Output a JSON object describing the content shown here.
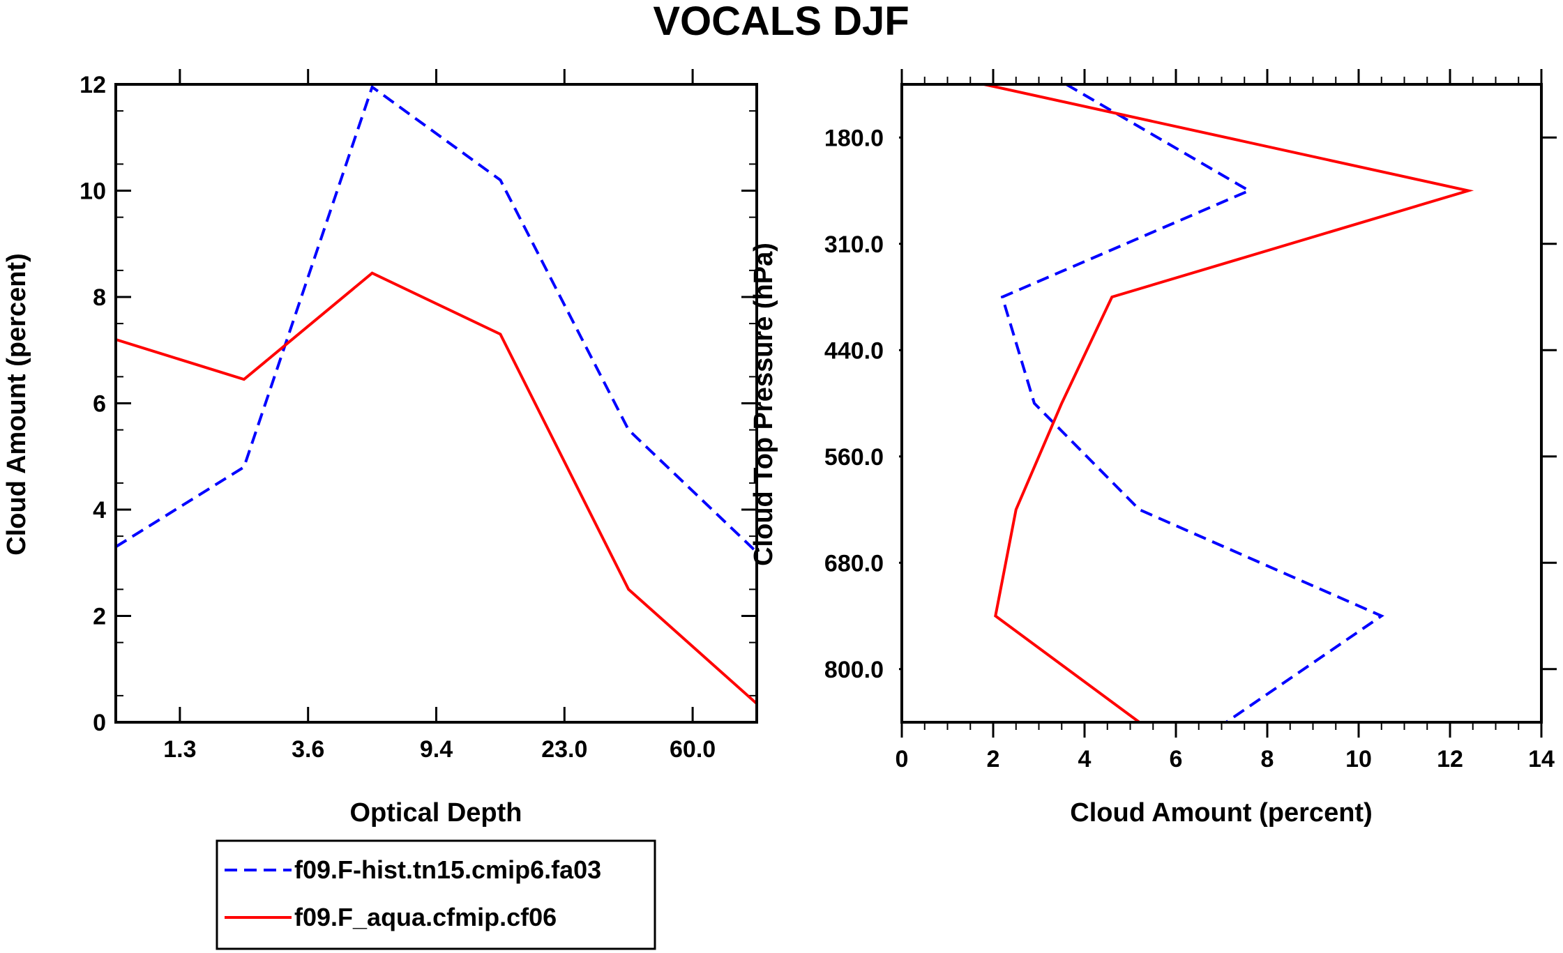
{
  "chart_data": [
    {
      "type": "line",
      "panel": "left",
      "title": "VOCALS DJF",
      "xlabel": "Optical Depth",
      "ylabel": "Cloud Amount (percent)",
      "x_scale": "log (optical depth bins)",
      "x": [
        0.3,
        2.45,
        6.5,
        16.2,
        41.5,
        100
      ],
      "xticks": [
        "1.3",
        "3.6",
        "9.4",
        "23.0",
        "60.0"
      ],
      "yticks": [
        "0",
        "2",
        "4",
        "6",
        "8",
        "10",
        "12"
      ],
      "ylim": [
        0,
        12
      ],
      "series": [
        {
          "name": "f09.F-hist.tn15.cmip6.fa03",
          "style": "dashed",
          "color": "#0000ff",
          "values": [
            3.3,
            4.8,
            11.95,
            10.2,
            5.5,
            3.2
          ]
        },
        {
          "name": "f09.F_aqua.cfmip.cf06",
          "style": "solid",
          "color": "#ff0000",
          "values": [
            7.2,
            6.45,
            8.45,
            7.3,
            2.5,
            0.35
          ]
        }
      ]
    },
    {
      "type": "line",
      "panel": "right",
      "xlabel": "Cloud Amount (percent)",
      "ylabel": "Cloud Top Pressure (hPa)",
      "xlim": [
        0,
        14
      ],
      "xticks": [
        "0",
        "2",
        "4",
        "6",
        "8",
        "10",
        "12",
        "14"
      ],
      "yticks": [
        "180.0",
        "310.0",
        "440.0",
        "560.0",
        "680.0",
        "800.0"
      ],
      "pressure_levels": [
        50,
        245,
        375,
        500,
        620,
        740,
        900
      ],
      "series": [
        {
          "name": "f09.F-hist.tn15.cmip6.fa03",
          "style": "dashed",
          "color": "#0000ff",
          "values": [
            3.6,
            7.6,
            2.2,
            2.9,
            5.2,
            10.5,
            7.1
          ]
        },
        {
          "name": "f09.F_aqua.cfmip.cf06",
          "style": "solid",
          "color": "#ff0000",
          "values": [
            1.8,
            12.4,
            4.6,
            3.5,
            2.5,
            2.05,
            5.2
          ]
        }
      ]
    }
  ],
  "legend": {
    "placement": "bottom-left",
    "entries": [
      {
        "label": "f09.F-hist.tn15.cmip6.fa03",
        "style": "dashed",
        "color": "#0000ff"
      },
      {
        "label": "f09.F_aqua.cfmip.cf06",
        "style": "solid",
        "color": "#ff0000"
      }
    ]
  }
}
